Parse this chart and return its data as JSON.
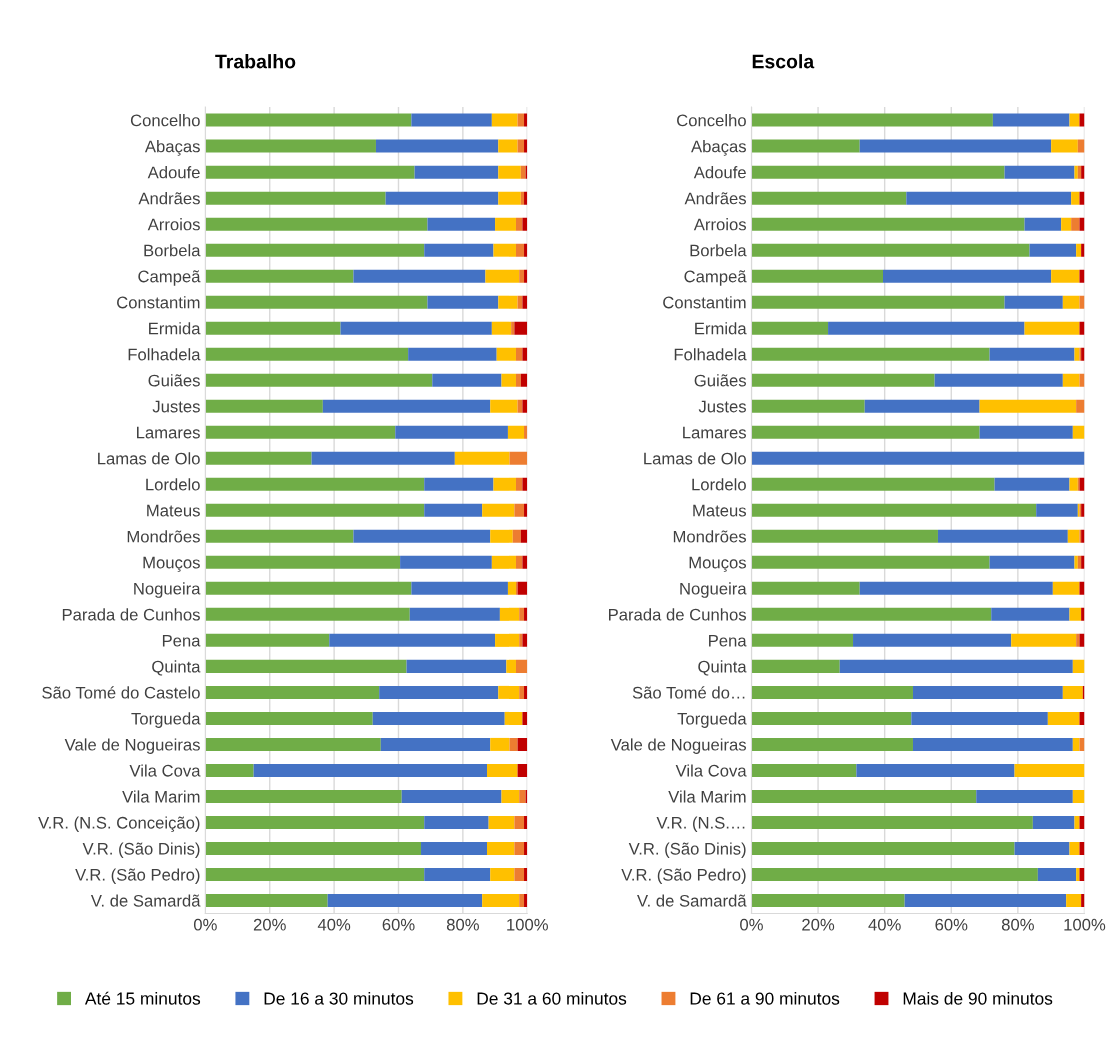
{
  "chart_data": [
    {
      "type": "bar",
      "orientation": "horizontal",
      "stacked": true,
      "title": "Trabalho",
      "categories": [
        "Concelho",
        "Abaças",
        "Adoufe",
        "Andrães",
        "Arroios",
        "Borbela",
        "Campeã",
        "Constantim",
        "Ermida",
        "Folhadela",
        "Guiães",
        "Justes",
        "Lamares",
        "Lamas de Olo",
        "Lordelo",
        "Mateus",
        "Mondrões",
        "Mouços",
        "Nogueira",
        "Parada de Cunhos",
        "Pena",
        "Quinta",
        "São Tomé do Castelo",
        "Torgueda",
        "Vale de Nogueiras",
        "Vila Cova",
        "Vila Marim",
        "V.R. (N.S. Conceição)",
        "V.R. (São Dinis)",
        "V.R. (São Pedro)",
        "V. de Samardã"
      ],
      "series": [
        {
          "name": "Até 15 minutos",
          "color": "#70ad47",
          "values": [
            64,
            53,
            65,
            56,
            69,
            68,
            46,
            69,
            42,
            63,
            70.5,
            36.5,
            59,
            33,
            68,
            68,
            46,
            60.5,
            64,
            63.5,
            38.5,
            62.5,
            54,
            52,
            54.5,
            15,
            61,
            68,
            67,
            68,
            38
          ]
        },
        {
          "name": "De 16 a 30 minutos",
          "color": "#4472c4",
          "values": [
            25,
            38,
            26,
            35,
            21,
            21.5,
            41,
            22,
            47,
            27.5,
            21.5,
            52,
            35,
            44.5,
            21.5,
            18,
            42.5,
            28.5,
            30,
            28,
            51.5,
            31,
            37,
            41,
            34,
            72.5,
            31,
            20,
            20.5,
            20.5,
            48
          ]
        },
        {
          "name": "De 31 a 60 minutos",
          "color": "#ffc000",
          "values": [
            8,
            6,
            7,
            7,
            6.5,
            7,
            10.5,
            6,
            6,
            6,
            4.5,
            8.5,
            5,
            17,
            7,
            10,
            7,
            7.5,
            2.5,
            6,
            7.5,
            3,
            6.5,
            5.5,
            6,
            9.5,
            5.5,
            8,
            8.5,
            7.5,
            11.5
          ]
        },
        {
          "name": "De 61 a 90 minutos",
          "color": "#ed7d31",
          "values": [
            2,
            2,
            1.5,
            1,
            2,
            2.5,
            1.5,
            1.5,
            1,
            2,
            1.5,
            1.5,
            1,
            5.5,
            2,
            3,
            2.5,
            2,
            0.5,
            1.5,
            1,
            3.5,
            1.5,
            0,
            2.5,
            0,
            2,
            3,
            3,
            3,
            1.5
          ]
        },
        {
          "name": "Mais de 90 minutos",
          "color": "#c00000",
          "values": [
            1,
            1,
            0.5,
            1,
            1.5,
            1,
            1,
            1.5,
            4,
            1.5,
            2,
            1.5,
            0,
            0,
            1.5,
            1,
            2,
            1.5,
            3,
            1,
            1.5,
            0,
            1,
            1.5,
            3,
            3,
            0.5,
            1,
            1,
            1,
            1
          ]
        }
      ],
      "xlim": [
        0,
        100
      ],
      "xticks": [
        {
          "value": 0,
          "label": "0%"
        },
        {
          "value": 20,
          "label": "20%"
        },
        {
          "value": 40,
          "label": "40%"
        },
        {
          "value": 60,
          "label": "60%"
        },
        {
          "value": 80,
          "label": "80%"
        },
        {
          "value": 100,
          "label": "100%"
        }
      ],
      "grid": "x",
      "legend": "bottom"
    },
    {
      "type": "bar",
      "orientation": "horizontal",
      "stacked": true,
      "title": "Escola",
      "categories": [
        "Concelho",
        "Abaças",
        "Adoufe",
        "Andrães",
        "Arroios",
        "Borbela",
        "Campeã",
        "Constantim",
        "Ermida",
        "Folhadela",
        "Guiães",
        "Justes",
        "Lamares",
        "Lamas de Olo",
        "Lordelo",
        "Mateus",
        "Mondrões",
        "Mouços",
        "Nogueira",
        "Parada de Cunhos",
        "Pena",
        "Quinta",
        "São Tomé do…",
        "Torgueda",
        "Vale de Nogueiras",
        "Vila Cova",
        "Vila Marim",
        "V.R. (N.S.…",
        "V.R. (São Dinis)",
        "V.R. (São Pedro)",
        "V. de Samardã"
      ],
      "series": [
        {
          "color": "#70ad47",
          "values": [
            72.5,
            32.5,
            76,
            46.5,
            82,
            83.5,
            39.5,
            76,
            23,
            71.5,
            55,
            34,
            68.5,
            0,
            73,
            85.5,
            56,
            71.5,
            32.5,
            72,
            30.5,
            26.5,
            48.5,
            48,
            48.5,
            31.5,
            67.5,
            84.5,
            79,
            86,
            46
          ]
        },
        {
          "color": "#4472c4",
          "values": [
            23,
            57.5,
            21,
            49.5,
            11,
            14,
            50.5,
            17.5,
            59,
            25.5,
            38.5,
            34.5,
            28,
            100,
            22.5,
            12.5,
            39,
            25.5,
            58,
            23.5,
            47.5,
            70,
            45,
            41,
            48,
            47.5,
            29,
            12.5,
            16.5,
            11.5,
            48.5
          ]
        },
        {
          "color": "#ffc000",
          "values": [
            3,
            8,
            1,
            2.5,
            3,
            1.5,
            8.5,
            5,
            16.5,
            1.5,
            5,
            29,
            3.5,
            0,
            2.5,
            0.5,
            3.5,
            1,
            8,
            3.5,
            19.5,
            3.5,
            6,
            9.5,
            2,
            21,
            3.5,
            1.5,
            3,
            1,
            4.5
          ]
        },
        {
          "color": "#ed7d31",
          "values": [
            0,
            2,
            1,
            0,
            2.5,
            0,
            0,
            1.5,
            0,
            0.5,
            1.5,
            2.5,
            0,
            0,
            0.5,
            0.5,
            0.5,
            1,
            0,
            0,
            1,
            0,
            0,
            0,
            1.5,
            0,
            0,
            0,
            0,
            0,
            0
          ]
        },
        {
          "color": "#c00000",
          "values": [
            1.5,
            0,
            1,
            1.5,
            1.5,
            1,
            1.5,
            0,
            1.5,
            1,
            0,
            0,
            0,
            0,
            1.5,
            1,
            1,
            1,
            1.5,
            1,
            1.5,
            0,
            0.5,
            1.5,
            0,
            0,
            0,
            1.5,
            1.5,
            1.5,
            1
          ]
        }
      ],
      "xlim": [
        0,
        100
      ],
      "xticks": [
        {
          "value": 0,
          "label": "0%"
        },
        {
          "value": 20,
          "label": "20%"
        },
        {
          "value": 40,
          "label": "40%"
        },
        {
          "value": 60,
          "label": "60%"
        },
        {
          "value": 80,
          "label": "80%"
        },
        {
          "value": 100,
          "label": "100%"
        }
      ],
      "grid": "x"
    }
  ]
}
